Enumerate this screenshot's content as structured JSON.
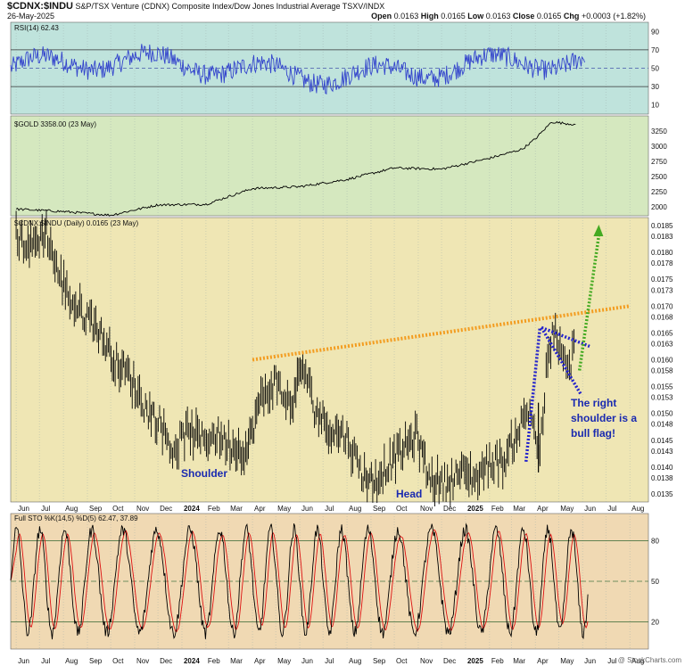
{
  "header": {
    "symbol": "$CDNX:$INDU",
    "description": "S&P/TSX Venture (CDNX) Composite Index/Dow Jones Industrial Average TSXV/INDX",
    "date": "26-May-2025",
    "open_label": "Open",
    "open": "0.0163",
    "high_label": "High",
    "high": "0.0165",
    "low_label": "Low",
    "low": "0.0163",
    "close_label": "Close",
    "close": "0.0165",
    "chg_label": "Chg",
    "chg": "+0.0003 (+1.82%)",
    "watermark": "@ StockCharts.com"
  },
  "colors": {
    "rsi_bg": "#bfe3dc",
    "gold_bg": "#d5e8bf",
    "main_bg": "#efe6b4",
    "sto_bg": "#f0d9b3",
    "rsi_line": "#3344cc",
    "price": "#000000",
    "sto_k": "#000000",
    "sto_d": "#dd1111",
    "resistance": "#f39c1f",
    "flag": "#2222cc",
    "target": "#44aa22"
  },
  "chart_data": [
    {
      "panel": "rsi",
      "type": "line",
      "label": "RSI(14) 62.43",
      "y_ticks": [
        90,
        70,
        50,
        30,
        10
      ],
      "ylim": [
        0,
        100
      ],
      "reference_lines": [
        70,
        50,
        30
      ],
      "last": 62.43
    },
    {
      "panel": "gold",
      "type": "line",
      "label": "$GOLD 3358.00 (23 May)",
      "y_ticks": [
        3250,
        3000,
        2750,
        2500,
        2250,
        2000
      ],
      "ylim": [
        1850,
        3500
      ],
      "series": {
        "x": [
          "2023-06-01",
          "2023-08-01",
          "2023-10-01",
          "2023-12-01",
          "2024-02-01",
          "2024-04-01",
          "2024-06-01",
          "2024-08-01",
          "2024-10-01",
          "2024-12-01",
          "2025-02-01",
          "2025-03-15",
          "2025-04-01",
          "2025-04-22",
          "2025-05-23"
        ],
        "y": [
          1960,
          1920,
          1860,
          2030,
          2040,
          2300,
          2330,
          2450,
          2640,
          2620,
          2800,
          2950,
          3120,
          3400,
          3358
        ]
      }
    },
    {
      "panel": "main",
      "type": "ohlc",
      "label": "$CDNX:$INDU (Daily) 0.0165 (23 May)",
      "y_ticks": [
        0.0185,
        0.0183,
        0.018,
        0.0178,
        0.0175,
        0.0173,
        0.017,
        0.0168,
        0.0165,
        0.0163,
        0.016,
        0.0158,
        0.0155,
        0.0153,
        0.015,
        0.0148,
        0.0145,
        0.0143,
        0.014,
        0.0138,
        0.0135
      ],
      "ylim": [
        0.01335,
        0.01865
      ],
      "series": {
        "x": [
          "2023-06-01",
          "2023-06-20",
          "2023-07-10",
          "2023-07-25",
          "2023-08-15",
          "2023-09-10",
          "2023-10-05",
          "2023-10-25",
          "2023-11-15",
          "2023-12-05",
          "2023-12-20",
          "2024-01-10",
          "2024-01-25",
          "2024-02-15",
          "2024-03-05",
          "2024-03-25",
          "2024-04-10",
          "2024-05-01",
          "2024-05-20",
          "2024-06-05",
          "2024-06-20",
          "2024-07-10",
          "2024-07-30",
          "2024-08-20",
          "2024-09-05",
          "2024-09-20",
          "2024-10-10",
          "2024-10-30",
          "2024-11-15",
          "2024-12-05",
          "2024-12-25",
          "2025-01-15",
          "2025-02-01",
          "2025-02-20",
          "2025-03-10",
          "2025-03-25",
          "2025-04-07",
          "2025-04-15",
          "2025-04-25",
          "2025-05-05",
          "2025-05-15",
          "2025-05-23"
        ],
        "y": [
          0.0183,
          0.0181,
          0.0184,
          0.0176,
          0.017,
          0.0167,
          0.016,
          0.0157,
          0.0151,
          0.0148,
          0.0143,
          0.0147,
          0.0145,
          0.0146,
          0.0144,
          0.0143,
          0.0152,
          0.0156,
          0.0151,
          0.0159,
          0.0151,
          0.0147,
          0.0146,
          0.0139,
          0.0137,
          0.014,
          0.0143,
          0.0146,
          0.0138,
          0.0137,
          0.0139,
          0.0138,
          0.0141,
          0.0141,
          0.0147,
          0.0151,
          0.0142,
          0.0157,
          0.0166,
          0.016,
          0.0158,
          0.0165
        ]
      },
      "x_ticks": [
        "Jun",
        "Jul",
        "Aug",
        "Sep",
        "Oct",
        "Nov",
        "Dec",
        "2024",
        "Feb",
        "Mar",
        "Apr",
        "May",
        "Jun",
        "Jul",
        "Aug",
        "Sep",
        "Oct",
        "Nov",
        "Dec",
        "2025",
        "Feb",
        "Mar",
        "Apr",
        "May",
        "Jun",
        "Jul",
        "Aug"
      ],
      "annotations": {
        "shoulder": "Shoulder",
        "head": "Head",
        "right_shoulder": [
          "The right",
          "shoulder is a",
          "bull flag!"
        ]
      },
      "resistance_line": {
        "x": [
          "2024-04-01",
          "2025-08-01"
        ],
        "y": [
          0.016,
          0.017
        ]
      }
    },
    {
      "panel": "sto",
      "type": "line",
      "label": "Full STO %K(14,5) %D(5) 62.47, 37.89",
      "y_ticks": [
        80,
        50,
        20
      ],
      "ylim": [
        0,
        100
      ],
      "reference_lines": [
        80,
        50,
        20
      ],
      "last_k": 62.47,
      "last_d": 37.89
    }
  ]
}
